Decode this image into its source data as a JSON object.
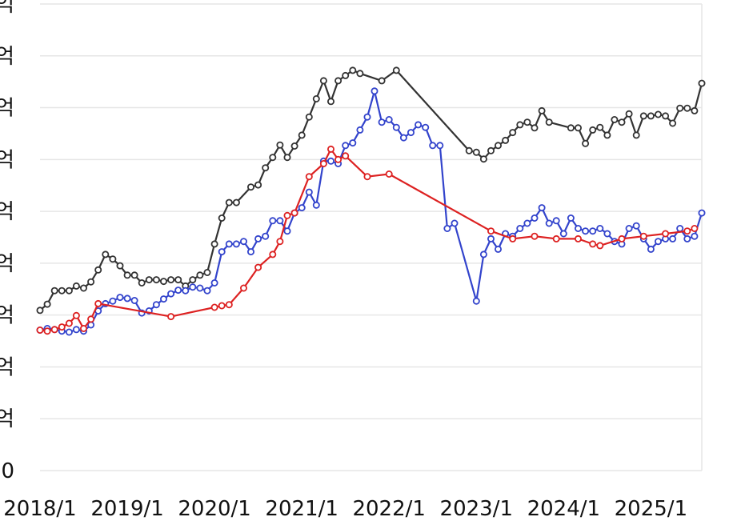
{
  "chart_data": {
    "type": "line",
    "title": "",
    "xlabel": "",
    "ylabel": "",
    "x_range": [
      "2018-01",
      "2025-08"
    ],
    "ylim": [
      0,
      9
    ],
    "grid": true,
    "y_ticks": [
      {
        "value": 0,
        "label": "0"
      },
      {
        "value": 1,
        "label": "억"
      },
      {
        "value": 2,
        "label": "억"
      },
      {
        "value": 3,
        "label": "억"
      },
      {
        "value": 4,
        "label": "억"
      },
      {
        "value": 5,
        "label": "억"
      },
      {
        "value": 6,
        "label": "억"
      },
      {
        "value": 7,
        "label": "억"
      },
      {
        "value": 8,
        "label": "억"
      },
      {
        "value": 9,
        "label": "억"
      }
    ],
    "x_ticks": [
      {
        "value": "2018-01",
        "label": "2018/1"
      },
      {
        "value": "2019-01",
        "label": "2019/1"
      },
      {
        "value": "2020-01",
        "label": "2020/1"
      },
      {
        "value": "2021-01",
        "label": "2021/1"
      },
      {
        "value": "2022-01",
        "label": "2022/1"
      },
      {
        "value": "2023-01",
        "label": "2023/1"
      },
      {
        "value": "2024-01",
        "label": "2024/1"
      },
      {
        "value": "2025-01",
        "label": "2025/1"
      }
    ],
    "series": [
      {
        "color": "#333333",
        "points": [
          [
            "2018-01",
            3.09
          ],
          [
            "2018-02",
            3.21
          ],
          [
            "2018-03",
            3.47
          ],
          [
            "2018-04",
            3.47
          ],
          [
            "2018-05",
            3.47
          ],
          [
            "2018-06",
            3.56
          ],
          [
            "2018-07",
            3.52
          ],
          [
            "2018-08",
            3.64
          ],
          [
            "2018-09",
            3.87
          ],
          [
            "2018-10",
            4.17
          ],
          [
            "2018-11",
            4.08
          ],
          [
            "2018-12",
            3.95
          ],
          [
            "2019-01",
            3.77
          ],
          [
            "2019-02",
            3.77
          ],
          [
            "2019-03",
            3.62
          ],
          [
            "2019-04",
            3.68
          ],
          [
            "2019-05",
            3.68
          ],
          [
            "2019-06",
            3.65
          ],
          [
            "2019-07",
            3.68
          ],
          [
            "2019-08",
            3.68
          ],
          [
            "2019-09",
            3.56
          ],
          [
            "2019-10",
            3.68
          ],
          [
            "2019-11",
            3.77
          ],
          [
            "2019-12",
            3.82
          ],
          [
            "2020-01",
            4.37
          ],
          [
            "2020-02",
            4.87
          ],
          [
            "2020-03",
            5.17
          ],
          [
            "2020-04",
            5.17
          ],
          [
            "2020-06",
            5.47
          ],
          [
            "2020-07",
            5.51
          ],
          [
            "2020-08",
            5.84
          ],
          [
            "2020-09",
            6.04
          ],
          [
            "2020-10",
            6.28
          ],
          [
            "2020-11",
            6.04
          ],
          [
            "2020-12",
            6.26
          ],
          [
            "2021-01",
            6.47
          ],
          [
            "2021-02",
            6.82
          ],
          [
            "2021-03",
            7.17
          ],
          [
            "2021-04",
            7.52
          ],
          [
            "2021-05",
            7.12
          ],
          [
            "2021-06",
            7.52
          ],
          [
            "2021-07",
            7.62
          ],
          [
            "2021-08",
            7.72
          ],
          [
            "2021-09",
            7.66
          ],
          [
            "2021-12",
            7.52
          ],
          [
            "2022-02",
            7.72
          ],
          [
            "2022-12",
            6.17
          ],
          [
            "2023-01",
            6.14
          ],
          [
            "2023-02",
            6.01
          ],
          [
            "2023-03",
            6.17
          ],
          [
            "2023-04",
            6.27
          ],
          [
            "2023-05",
            6.37
          ],
          [
            "2023-06",
            6.52
          ],
          [
            "2023-07",
            6.67
          ],
          [
            "2023-08",
            6.72
          ],
          [
            "2023-09",
            6.61
          ],
          [
            "2023-10",
            6.94
          ],
          [
            "2023-11",
            6.72
          ],
          [
            "2024-02",
            6.61
          ],
          [
            "2024-03",
            6.61
          ],
          [
            "2024-04",
            6.31
          ],
          [
            "2024-05",
            6.57
          ],
          [
            "2024-06",
            6.62
          ],
          [
            "2024-07",
            6.47
          ],
          [
            "2024-08",
            6.77
          ],
          [
            "2024-09",
            6.72
          ],
          [
            "2024-10",
            6.88
          ],
          [
            "2024-11",
            6.47
          ],
          [
            "2024-12",
            6.84
          ],
          [
            "2025-01",
            6.84
          ],
          [
            "2025-02",
            6.87
          ],
          [
            "2025-03",
            6.84
          ],
          [
            "2025-04",
            6.7
          ],
          [
            "2025-05",
            6.99
          ],
          [
            "2025-06",
            6.99
          ],
          [
            "2025-07",
            6.94
          ],
          [
            "2025-08",
            7.47
          ]
        ]
      },
      {
        "color": "#3344cc",
        "points": [
          [
            "2018-01",
            2.71
          ],
          [
            "2018-02",
            2.74
          ],
          [
            "2018-03",
            2.72
          ],
          [
            "2018-04",
            2.69
          ],
          [
            "2018-05",
            2.67
          ],
          [
            "2018-06",
            2.72
          ],
          [
            "2018-07",
            2.69
          ],
          [
            "2018-08",
            2.81
          ],
          [
            "2018-09",
            3.08
          ],
          [
            "2018-10",
            3.22
          ],
          [
            "2018-11",
            3.27
          ],
          [
            "2018-12",
            3.34
          ],
          [
            "2019-01",
            3.32
          ],
          [
            "2019-02",
            3.28
          ],
          [
            "2019-03",
            3.04
          ],
          [
            "2019-04",
            3.08
          ],
          [
            "2019-05",
            3.2
          ],
          [
            "2019-06",
            3.31
          ],
          [
            "2019-07",
            3.41
          ],
          [
            "2019-08",
            3.48
          ],
          [
            "2019-09",
            3.47
          ],
          [
            "2019-10",
            3.54
          ],
          [
            "2019-11",
            3.52
          ],
          [
            "2019-12",
            3.47
          ],
          [
            "2020-01",
            3.62
          ],
          [
            "2020-02",
            4.22
          ],
          [
            "2020-03",
            4.37
          ],
          [
            "2020-04",
            4.37
          ],
          [
            "2020-05",
            4.42
          ],
          [
            "2020-06",
            4.22
          ],
          [
            "2020-07",
            4.47
          ],
          [
            "2020-08",
            4.52
          ],
          [
            "2020-09",
            4.82
          ],
          [
            "2020-10",
            4.82
          ],
          [
            "2020-11",
            4.62
          ],
          [
            "2020-12",
            4.97
          ],
          [
            "2021-01",
            5.07
          ],
          [
            "2021-02",
            5.37
          ],
          [
            "2021-03",
            5.12
          ],
          [
            "2021-04",
            5.97
          ],
          [
            "2021-05",
            5.97
          ],
          [
            "2021-06",
            5.92
          ],
          [
            "2021-07",
            6.27
          ],
          [
            "2021-08",
            6.32
          ],
          [
            "2021-09",
            6.57
          ],
          [
            "2021-10",
            6.82
          ],
          [
            "2021-11",
            7.32
          ],
          [
            "2021-12",
            6.72
          ],
          [
            "2022-01",
            6.77
          ],
          [
            "2022-02",
            6.62
          ],
          [
            "2022-03",
            6.42
          ],
          [
            "2022-04",
            6.52
          ],
          [
            "2022-05",
            6.67
          ],
          [
            "2022-06",
            6.62
          ],
          [
            "2022-07",
            6.27
          ],
          [
            "2022-08",
            6.27
          ],
          [
            "2022-09",
            4.67
          ],
          [
            "2022-10",
            4.77
          ],
          [
            "2023-01",
            3.27
          ],
          [
            "2023-02",
            4.17
          ],
          [
            "2023-03",
            4.47
          ],
          [
            "2023-04",
            4.27
          ],
          [
            "2023-05",
            4.57
          ],
          [
            "2023-06",
            4.52
          ],
          [
            "2023-07",
            4.67
          ],
          [
            "2023-08",
            4.77
          ],
          [
            "2023-09",
            4.87
          ],
          [
            "2023-10",
            5.07
          ],
          [
            "2023-11",
            4.77
          ],
          [
            "2023-12",
            4.82
          ],
          [
            "2024-01",
            4.57
          ],
          [
            "2024-02",
            4.87
          ],
          [
            "2024-03",
            4.67
          ],
          [
            "2024-04",
            4.62
          ],
          [
            "2024-05",
            4.62
          ],
          [
            "2024-06",
            4.67
          ],
          [
            "2024-07",
            4.57
          ],
          [
            "2024-08",
            4.42
          ],
          [
            "2024-09",
            4.37
          ],
          [
            "2024-10",
            4.67
          ],
          [
            "2024-11",
            4.72
          ],
          [
            "2024-12",
            4.47
          ],
          [
            "2025-01",
            4.27
          ],
          [
            "2025-02",
            4.42
          ],
          [
            "2025-03",
            4.47
          ],
          [
            "2025-04",
            4.47
          ],
          [
            "2025-05",
            4.67
          ],
          [
            "2025-06",
            4.47
          ],
          [
            "2025-07",
            4.52
          ],
          [
            "2025-08",
            4.97
          ]
        ]
      },
      {
        "color": "#dd2222",
        "points": [
          [
            "2018-01",
            2.71
          ],
          [
            "2018-02",
            2.69
          ],
          [
            "2018-03",
            2.72
          ],
          [
            "2018-04",
            2.77
          ],
          [
            "2018-05",
            2.84
          ],
          [
            "2018-06",
            2.99
          ],
          [
            "2018-07",
            2.74
          ],
          [
            "2018-08",
            2.92
          ],
          [
            "2018-09",
            3.22
          ],
          [
            "2019-07",
            2.97
          ],
          [
            "2020-01",
            3.15
          ],
          [
            "2020-02",
            3.18
          ],
          [
            "2020-03",
            3.2
          ],
          [
            "2020-05",
            3.52
          ],
          [
            "2020-07",
            3.92
          ],
          [
            "2020-09",
            4.17
          ],
          [
            "2020-10",
            4.42
          ],
          [
            "2020-11",
            4.92
          ],
          [
            "2020-12",
            4.97
          ],
          [
            "2021-02",
            5.67
          ],
          [
            "2021-04",
            5.92
          ],
          [
            "2021-05",
            6.2
          ],
          [
            "2021-06",
            6.0
          ],
          [
            "2021-07",
            6.07
          ],
          [
            "2021-10",
            5.67
          ],
          [
            "2022-01",
            5.72
          ],
          [
            "2023-03",
            4.62
          ],
          [
            "2023-06",
            4.47
          ],
          [
            "2023-09",
            4.52
          ],
          [
            "2023-12",
            4.47
          ],
          [
            "2024-03",
            4.47
          ],
          [
            "2024-05",
            4.37
          ],
          [
            "2024-06",
            4.34
          ],
          [
            "2024-09",
            4.47
          ],
          [
            "2024-12",
            4.52
          ],
          [
            "2025-03",
            4.57
          ],
          [
            "2025-06",
            4.62
          ],
          [
            "2025-07",
            4.67
          ]
        ]
      }
    ]
  }
}
